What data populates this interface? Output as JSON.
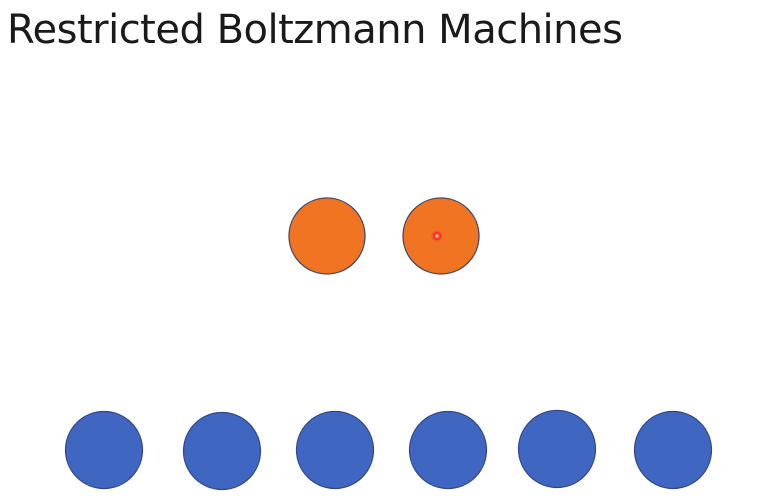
{
  "slide": {
    "title": "Restricted Boltzmann Machines"
  },
  "diagram": {
    "hidden_layer": {
      "unit_count": 2,
      "color": "#f07421"
    },
    "visible_layer": {
      "unit_count": 6,
      "color": "#3f67c1"
    },
    "pointer": {
      "color": "#ff3b3b"
    }
  }
}
